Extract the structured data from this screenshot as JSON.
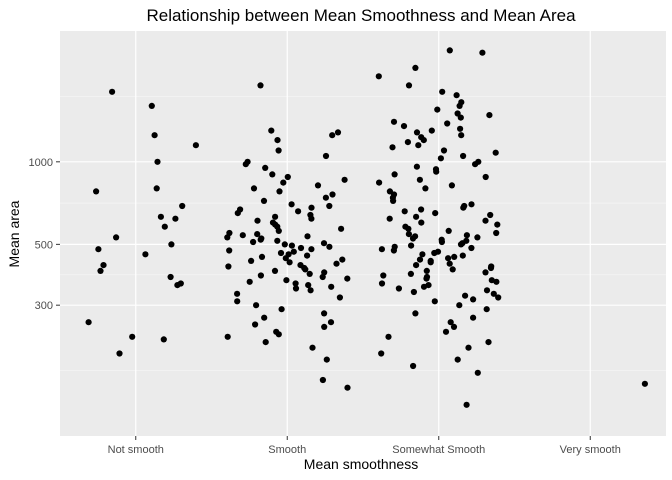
{
  "chart_data": {
    "type": "scatter",
    "title": "Relationship between Mean Smoothness and Mean Area",
    "xlabel": "Mean smoothness",
    "ylabel": "Mean area",
    "x_scale": "categorical (jittered points)",
    "y_scale": "log10",
    "ylim": [
      100,
      3000
    ],
    "y_ticks": [
      300,
      500,
      1000
    ],
    "y_tick_labels": [
      "300",
      "500",
      "1000"
    ],
    "categories": [
      "Not smooth",
      "Smooth",
      "Somewhat Smooth",
      "Very smooth"
    ],
    "grid": true,
    "legend": "none",
    "colors": {
      "panel": "#ebebeb",
      "grid": "#ffffff",
      "point": "#000000"
    },
    "points": {
      "Not smooth": [
        1250,
        1800,
        1600,
        1150,
        1000,
        800,
        780,
        690,
        630,
        620,
        580,
        530,
        500,
        480,
        460,
        420,
        400,
        380,
        360,
        355,
        260,
        230,
        225,
        200
      ],
      "Smooth": [
        1900,
        1300,
        1280,
        1250,
        1200,
        1100,
        1050,
        1000,
        980,
        950,
        900,
        880,
        860,
        840,
        820,
        800,
        780,
        760,
        740,
        720,
        700,
        690,
        680,
        670,
        660,
        650,
        640,
        630,
        620,
        610,
        600,
        590,
        580,
        570,
        560,
        550,
        545,
        540,
        535,
        530,
        525,
        520,
        515,
        510,
        505,
        500,
        495,
        490,
        485,
        480,
        475,
        470,
        465,
        460,
        455,
        450,
        445,
        440,
        435,
        430,
        425,
        420,
        415,
        410,
        405,
        400,
        395,
        390,
        385,
        380,
        375,
        370,
        365,
        360,
        355,
        350,
        345,
        340,
        330,
        320,
        310,
        300,
        290,
        280,
        270,
        260,
        255,
        250,
        240,
        235,
        230,
        220,
        210,
        190,
        160,
        150
      ],
      "Somewhat Smooth": [
        2550,
        2500,
        2200,
        2050,
        1900,
        1800,
        1750,
        1650,
        1600,
        1550,
        1500,
        1480,
        1450,
        1400,
        1380,
        1350,
        1320,
        1300,
        1280,
        1250,
        1230,
        1200,
        1180,
        1150,
        1130,
        1100,
        1080,
        1050,
        1030,
        1000,
        980,
        960,
        940,
        920,
        900,
        880,
        860,
        840,
        820,
        800,
        780,
        760,
        740,
        720,
        700,
        690,
        680,
        670,
        660,
        650,
        640,
        630,
        620,
        610,
        600,
        590,
        580,
        570,
        560,
        550,
        545,
        540,
        535,
        530,
        525,
        520,
        515,
        510,
        505,
        500,
        495,
        490,
        485,
        480,
        475,
        470,
        465,
        460,
        455,
        450,
        445,
        440,
        435,
        430,
        425,
        420,
        415,
        410,
        405,
        400,
        395,
        390,
        385,
        380,
        375,
        370,
        365,
        360,
        355,
        350,
        345,
        340,
        335,
        330,
        325,
        320,
        315,
        310,
        300,
        290,
        280,
        270,
        260,
        250,
        240,
        230,
        220,
        210,
        200,
        190,
        180,
        170,
        130
      ],
      "Very smooth": [
        155
      ]
    }
  }
}
